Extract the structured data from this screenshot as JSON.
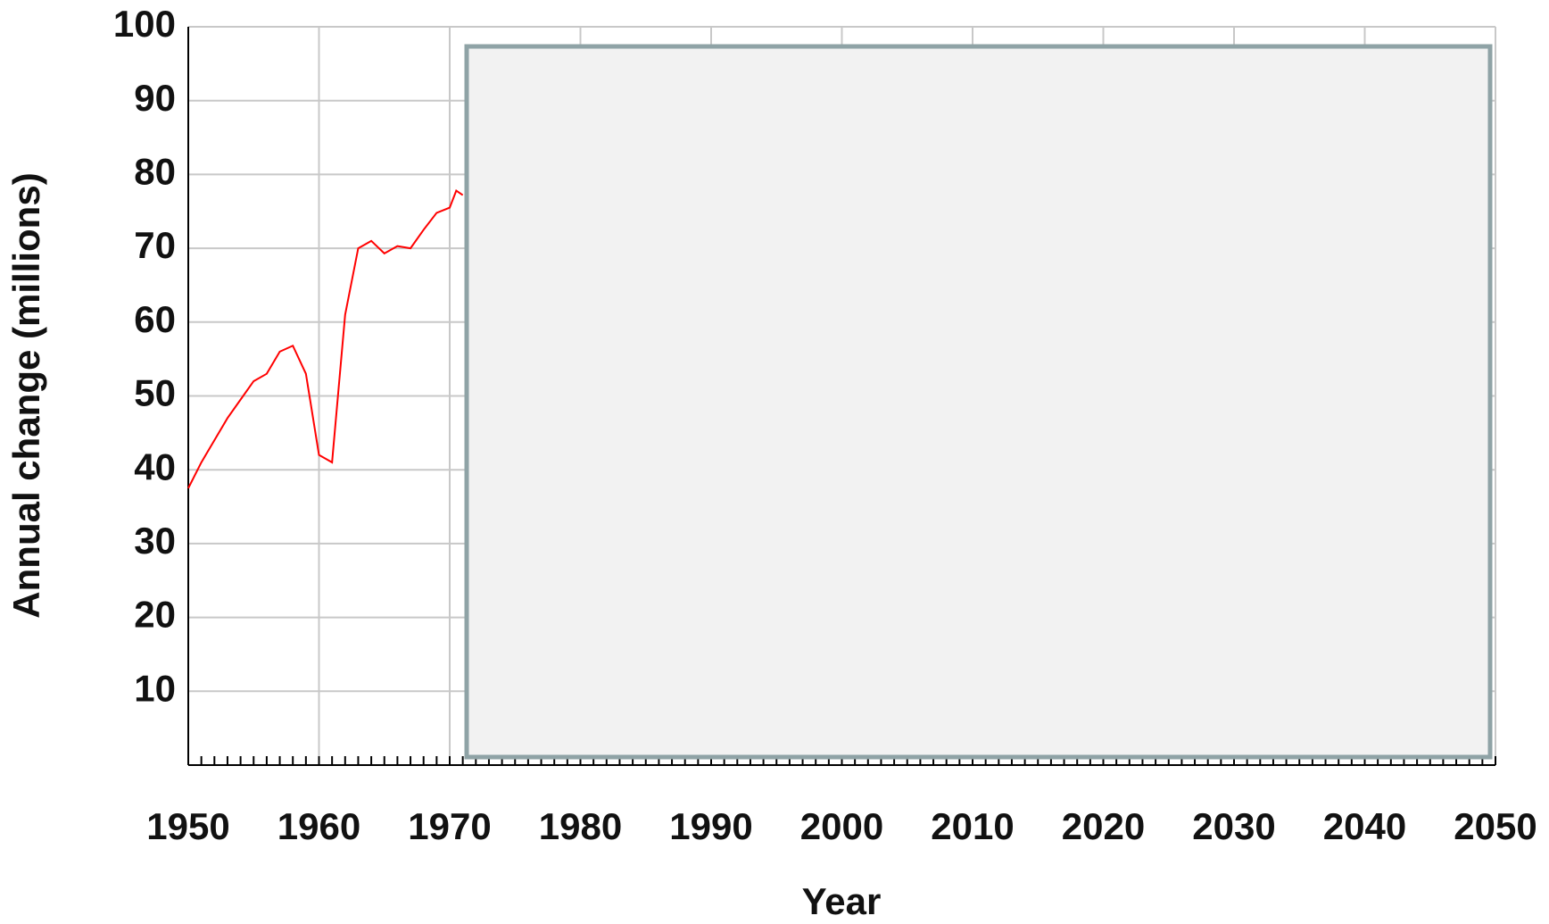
{
  "chart_data": {
    "type": "line",
    "x_label": "Year",
    "y_label": "Annual change (millions)",
    "x": [
      1950,
      1951,
      1952,
      1953,
      1954,
      1955,
      1956,
      1957,
      1958,
      1959,
      1960,
      1960.5,
      1961,
      1962,
      1963,
      1964,
      1965,
      1966,
      1967,
      1968,
      1969,
      1970,
      1970.5,
      1971
    ],
    "series": [
      {
        "name": "Annual change",
        "color": "#ff0000",
        "values": [
          37.5,
          41,
          44,
          47,
          49.5,
          52,
          53,
          56,
          56.8,
          53,
          42,
          41.5,
          41,
          61,
          70,
          71,
          69.3,
          70.3,
          70,
          72.5,
          74.8,
          75.5,
          77.8,
          77.2
        ]
      }
    ],
    "xlim": [
      1950,
      2050
    ],
    "xticks": [
      1950,
      1960,
      1970,
      1980,
      1990,
      2000,
      2010,
      2020,
      2030,
      2040,
      2050
    ],
    "ylim": [
      0,
      100
    ],
    "yticks": [
      10,
      20,
      30,
      40,
      50,
      60,
      70,
      80,
      90,
      100
    ],
    "grid": true
  }
}
